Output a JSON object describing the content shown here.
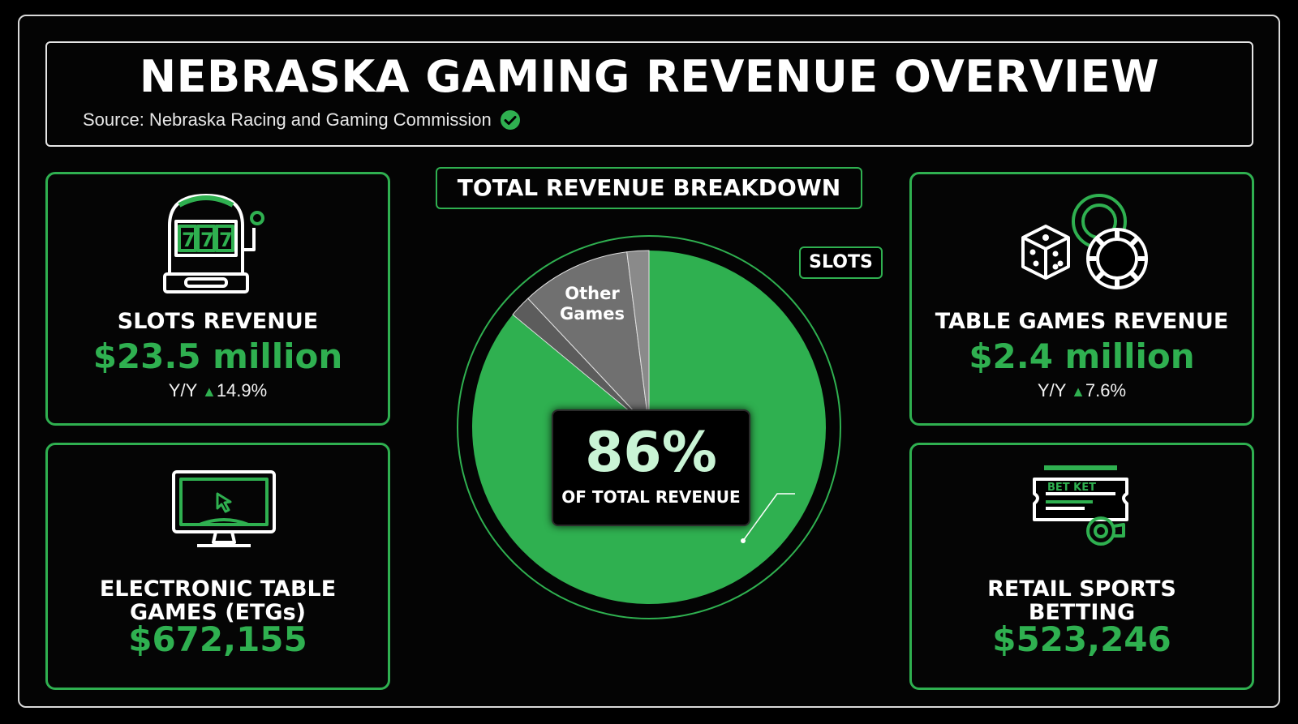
{
  "header": {
    "title": "NEBRASKA GAMING REVENUE OVERVIEW",
    "source": "Source: Nebraska Racing and Gaming Commission",
    "source_icon": "check-circle-icon"
  },
  "cards": {
    "slots": {
      "label": "SLOTS REVENUE",
      "value": "$23.5 million",
      "yoy_prefix": "Y/Y",
      "yoy_value": "14.9%",
      "icon": "slot-machine-icon"
    },
    "table_games": {
      "label": "TABLE GAMES REVENUE",
      "value": "$2.4 million",
      "yoy_prefix": "Y/Y",
      "yoy_value": "7.6%",
      "icon": "dice-and-chips-icon"
    },
    "etg": {
      "label_line1": "ELECTRONIC TABLE",
      "label_line2": "GAMES (ETGs)",
      "value": "$672,155",
      "icon": "monitor-icon"
    },
    "sports": {
      "label_line1": "RETAIL SPORTS",
      "label_line2": "BETTING",
      "value": "$523,246",
      "icon": "bet-ticket-icon",
      "ticket_text": "BET KET"
    }
  },
  "breakdown": {
    "title": "TOTAL REVENUE BREAKDOWN",
    "center_value": "86%",
    "center_label": "OF TOTAL REVENUE",
    "slots_tag": "SLOTS",
    "other_label_line1": "Other",
    "other_label_line2": "Games"
  },
  "colors": {
    "accent": "#2fb050",
    "slice_gray": "#707070",
    "slice_dark": "#5c5c5c",
    "slice_light": "#8a8a8a"
  },
  "chart_data": {
    "type": "pie",
    "title": "TOTAL REVENUE BREAKDOWN",
    "slices": [
      {
        "name": "SLOTS",
        "value": 86,
        "color": "#2fb050"
      },
      {
        "name": "",
        "value": 2,
        "color": "#5c5c5c"
      },
      {
        "name": "Other Games",
        "value": 10,
        "color": "#707070"
      },
      {
        "name": "",
        "value": 2,
        "color": "#8a8a8a"
      }
    ]
  }
}
